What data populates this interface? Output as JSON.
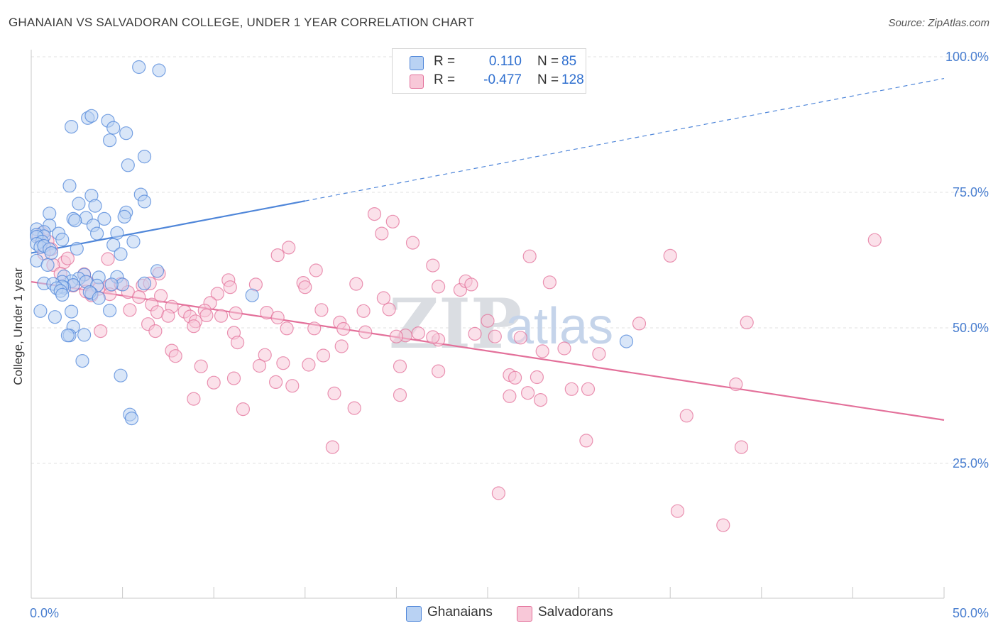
{
  "title": "GHANAIAN VS SALVADORAN COLLEGE, UNDER 1 YEAR CORRELATION CHART",
  "source": "Source: ZipAtlas.com",
  "legend": {
    "r_label": "R =",
    "n_label": "N =",
    "series": [
      {
        "name": "Ghanaians",
        "r": "0.110",
        "n": "85",
        "color": "#9dbfee"
      },
      {
        "name": "Salvadorans",
        "r": "-0.477",
        "n": "128",
        "color": "#f5b3c8"
      }
    ]
  },
  "watermark": {
    "zip": "ZIP",
    "atlas": "atlas"
  },
  "chart_data": {
    "type": "scatter",
    "title": "GHANAIAN VS SALVADORAN COLLEGE, UNDER 1 YEAR CORRELATION CHART",
    "xlabel": "",
    "ylabel": "College, Under 1 year",
    "xlim": [
      0,
      50
    ],
    "ylim": [
      0,
      105
    ],
    "x_tick_labels": [
      "0.0%",
      "50.0%"
    ],
    "y_ticks": [
      25,
      50,
      75,
      100
    ],
    "y_tick_labels": [
      "25.0%",
      "50.0%",
      "75.0%",
      "100.0%"
    ],
    "grid": true,
    "colors": {
      "Ghanaians": "#4f86d9",
      "Salvadorans": "#e3709a",
      "Ghanaians_fill": "#b9d2f3",
      "Salvadorans_fill": "#f8c8d8"
    },
    "series": [
      {
        "name": "Ghanaians",
        "points": [
          [
            5.9,
            98.1
          ],
          [
            7.0,
            97.5
          ],
          [
            3.1,
            88.7
          ],
          [
            3.3,
            89.1
          ],
          [
            4.2,
            88.2
          ],
          [
            2.2,
            87.1
          ],
          [
            4.5,
            86.9
          ],
          [
            5.2,
            85.9
          ],
          [
            4.3,
            84.6
          ],
          [
            6.2,
            81.6
          ],
          [
            5.3,
            80.0
          ],
          [
            2.1,
            76.2
          ],
          [
            3.3,
            74.4
          ],
          [
            6.0,
            74.6
          ],
          [
            6.2,
            73.3
          ],
          [
            2.6,
            72.9
          ],
          [
            3.5,
            72.5
          ],
          [
            1.0,
            71.1
          ],
          [
            5.2,
            71.3
          ],
          [
            5.1,
            70.5
          ],
          [
            2.3,
            70.1
          ],
          [
            3.0,
            70.3
          ],
          [
            4.0,
            70.1
          ],
          [
            2.4,
            69.8
          ],
          [
            1.0,
            68.9
          ],
          [
            0.3,
            68.2
          ],
          [
            3.4,
            68.9
          ],
          [
            0.7,
            67.7
          ],
          [
            1.5,
            67.4
          ],
          [
            0.3,
            67.2
          ],
          [
            4.7,
            67.5
          ],
          [
            3.6,
            67.4
          ],
          [
            0.7,
            66.9
          ],
          [
            0.3,
            66.8
          ],
          [
            1.7,
            66.3
          ],
          [
            0.6,
            65.9
          ],
          [
            0.3,
            65.5
          ],
          [
            5.6,
            65.9
          ],
          [
            4.5,
            65.3
          ],
          [
            0.5,
            64.9
          ],
          [
            0.7,
            65.1
          ],
          [
            1.0,
            64.5
          ],
          [
            2.5,
            64.6
          ],
          [
            1.1,
            63.8
          ],
          [
            4.9,
            63.6
          ],
          [
            0.3,
            62.4
          ],
          [
            0.9,
            61.6
          ],
          [
            6.9,
            60.5
          ],
          [
            2.9,
            59.8
          ],
          [
            1.8,
            59.5
          ],
          [
            2.6,
            59.1
          ],
          [
            3.7,
            59.3
          ],
          [
            4.7,
            59.4
          ],
          [
            0.7,
            58.2
          ],
          [
            3.0,
            58.5
          ],
          [
            2.2,
            58.6
          ],
          [
            1.7,
            58.5
          ],
          [
            1.2,
            58.1
          ],
          [
            2.3,
            57.9
          ],
          [
            6.2,
            58.2
          ],
          [
            5.0,
            58.0
          ],
          [
            1.8,
            57.4
          ],
          [
            3.6,
            57.8
          ],
          [
            1.7,
            57.6
          ],
          [
            4.4,
            58.0
          ],
          [
            1.4,
            57.3
          ],
          [
            1.6,
            56.8
          ],
          [
            3.3,
            56.3
          ],
          [
            3.2,
            56.6
          ],
          [
            12.1,
            56.0
          ],
          [
            1.7,
            56.1
          ],
          [
            3.7,
            55.5
          ],
          [
            2.2,
            53.0
          ],
          [
            0.5,
            53.1
          ],
          [
            4.3,
            53.2
          ],
          [
            1.3,
            52.0
          ],
          [
            2.3,
            50.2
          ],
          [
            2.1,
            48.6
          ],
          [
            2.0,
            48.6
          ],
          [
            2.8,
            43.9
          ],
          [
            4.9,
            41.2
          ],
          [
            5.4,
            34.0
          ],
          [
            5.5,
            33.3
          ],
          [
            32.6,
            47.5
          ],
          [
            2.9,
            48.7
          ]
        ]
      },
      {
        "name": "Salvadorans",
        "points": [
          [
            46.2,
            66.2
          ],
          [
            0.6,
            67.5
          ],
          [
            0.4,
            66.9
          ],
          [
            0.9,
            66.0
          ],
          [
            1.1,
            64.5
          ],
          [
            0.7,
            63.7
          ],
          [
            1.8,
            62.1
          ],
          [
            1.2,
            61.6
          ],
          [
            2.0,
            62.8
          ],
          [
            1.6,
            60.0
          ],
          [
            4.2,
            62.7
          ],
          [
            18.8,
            71.0
          ],
          [
            19.8,
            69.6
          ],
          [
            19.2,
            67.4
          ],
          [
            20.9,
            65.7
          ],
          [
            14.1,
            64.8
          ],
          [
            13.5,
            63.4
          ],
          [
            27.3,
            63.2
          ],
          [
            35.0,
            63.3
          ],
          [
            22.0,
            61.5
          ],
          [
            15.6,
            60.6
          ],
          [
            7.0,
            60.0
          ],
          [
            2.9,
            59.9
          ],
          [
            10.8,
            58.8
          ],
          [
            17.8,
            58.1
          ],
          [
            22.3,
            57.6
          ],
          [
            23.5,
            57.0
          ],
          [
            14.9,
            58.3
          ],
          [
            15.0,
            57.5
          ],
          [
            23.8,
            58.6
          ],
          [
            24.1,
            58.0
          ],
          [
            28.4,
            58.4
          ],
          [
            3.1,
            58.4
          ],
          [
            2.3,
            57.8
          ],
          [
            3.7,
            57.2
          ],
          [
            4.3,
            57.8
          ],
          [
            4.9,
            58.1
          ],
          [
            6.1,
            57.8
          ],
          [
            6.5,
            58.2
          ],
          [
            10.9,
            57.5
          ],
          [
            12.3,
            58.0
          ],
          [
            3.0,
            56.7
          ],
          [
            3.3,
            56.0
          ],
          [
            4.3,
            56.2
          ],
          [
            5.3,
            56.6
          ],
          [
            5.9,
            55.7
          ],
          [
            7.1,
            55.9
          ],
          [
            10.2,
            56.3
          ],
          [
            19.3,
            55.5
          ],
          [
            9.8,
            54.6
          ],
          [
            6.6,
            54.3
          ],
          [
            7.7,
            53.9
          ],
          [
            8.4,
            53.0
          ],
          [
            9.5,
            53.2
          ],
          [
            11.2,
            52.7
          ],
          [
            12.9,
            52.8
          ],
          [
            15.9,
            53.3
          ],
          [
            18.2,
            53.1
          ],
          [
            19.6,
            53.4
          ],
          [
            5.4,
            53.3
          ],
          [
            6.9,
            52.9
          ],
          [
            8.7,
            52.1
          ],
          [
            9.6,
            52.3
          ],
          [
            10.4,
            52.2
          ],
          [
            13.5,
            51.9
          ],
          [
            25.0,
            51.3
          ],
          [
            7.5,
            52.2
          ],
          [
            9.0,
            51.2
          ],
          [
            6.4,
            50.7
          ],
          [
            16.9,
            51.0
          ],
          [
            8.9,
            50.3
          ],
          [
            17.1,
            49.8
          ],
          [
            14.0,
            49.9
          ],
          [
            15.5,
            49.9
          ],
          [
            18.3,
            49.2
          ],
          [
            21.2,
            49.0
          ],
          [
            24.3,
            48.9
          ],
          [
            25.4,
            48.4
          ],
          [
            26.8,
            48.2
          ],
          [
            39.2,
            51.0
          ],
          [
            33.3,
            50.8
          ],
          [
            3.8,
            49.4
          ],
          [
            6.8,
            49.4
          ],
          [
            11.1,
            49.1
          ],
          [
            20.5,
            48.6
          ],
          [
            20.0,
            48.4
          ],
          [
            22.3,
            47.8
          ],
          [
            28.0,
            45.7
          ],
          [
            31.1,
            45.2
          ],
          [
            11.3,
            47.3
          ],
          [
            17.0,
            46.6
          ],
          [
            7.7,
            45.8
          ],
          [
            12.8,
            45.0
          ],
          [
            16.0,
            44.9
          ],
          [
            7.9,
            44.8
          ],
          [
            22.0,
            48.3
          ],
          [
            12.5,
            43.0
          ],
          [
            13.8,
            43.5
          ],
          [
            15.2,
            43.2
          ],
          [
            9.3,
            42.9
          ],
          [
            22.3,
            42.0
          ],
          [
            20.2,
            42.9
          ],
          [
            26.2,
            41.3
          ],
          [
            26.5,
            40.8
          ],
          [
            27.7,
            40.9
          ],
          [
            11.1,
            40.7
          ],
          [
            13.4,
            40.0
          ],
          [
            10.0,
            39.9
          ],
          [
            14.3,
            39.3
          ],
          [
            30.5,
            38.7
          ],
          [
            29.6,
            38.7
          ],
          [
            38.6,
            39.6
          ],
          [
            27.2,
            38.0
          ],
          [
            16.6,
            37.9
          ],
          [
            20.2,
            37.6
          ],
          [
            26.2,
            37.4
          ],
          [
            8.9,
            36.9
          ],
          [
            27.9,
            36.7
          ],
          [
            17.7,
            35.2
          ],
          [
            11.6,
            35.0
          ],
          [
            35.9,
            33.8
          ],
          [
            30.4,
            29.2
          ],
          [
            16.5,
            28.0
          ],
          [
            38.9,
            28.0
          ],
          [
            25.6,
            19.5
          ],
          [
            35.4,
            16.2
          ],
          [
            37.9,
            13.6
          ],
          [
            29.2,
            46.2
          ]
        ]
      }
    ],
    "trend_lines": [
      {
        "series": "Ghanaians",
        "x": [
          0,
          15
        ],
        "y": [
          63.8,
          73.4
        ],
        "dashed_extension_to": [
          50,
          96.0
        ]
      },
      {
        "series": "Salvadorans",
        "x": [
          0,
          50
        ],
        "y": [
          58.5,
          33.0
        ]
      }
    ]
  }
}
